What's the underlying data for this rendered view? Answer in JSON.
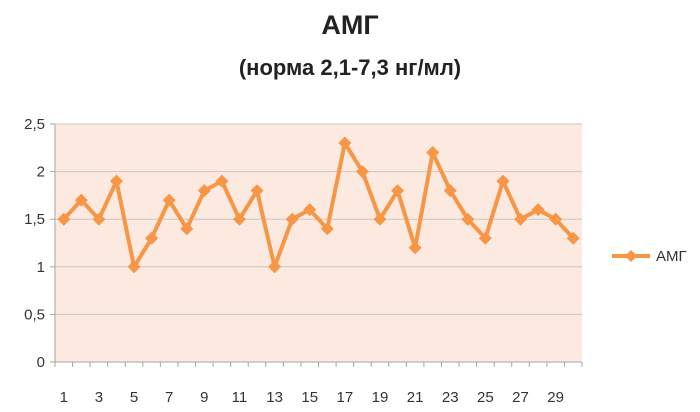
{
  "chart_data": {
    "type": "line",
    "title": "АМГ",
    "subtitle": "(норма 2,1-7,3 нг/мл)",
    "xlabel": "",
    "ylabel": "",
    "x": [
      1,
      2,
      3,
      4,
      5,
      6,
      7,
      8,
      9,
      10,
      11,
      12,
      13,
      14,
      15,
      16,
      17,
      18,
      19,
      20,
      21,
      22,
      23,
      24,
      25,
      26,
      27,
      28,
      29,
      30
    ],
    "x_tick_labels": [
      "1",
      "3",
      "5",
      "7",
      "9",
      "11",
      "13",
      "15",
      "17",
      "19",
      "21",
      "23",
      "25",
      "27",
      "29"
    ],
    "x_tick_values": [
      1,
      3,
      5,
      7,
      9,
      11,
      13,
      15,
      17,
      19,
      21,
      23,
      25,
      27,
      29
    ],
    "y_tick_labels": [
      "0",
      "0,5",
      "1",
      "1,5",
      "2",
      "2,5"
    ],
    "y_tick_values": [
      0,
      0.5,
      1,
      1.5,
      2,
      2.5
    ],
    "ylim": [
      0,
      2.5
    ],
    "xlim": [
      1,
      30
    ],
    "grid": true,
    "legend_position": "right",
    "series": [
      {
        "name": "АМГ",
        "color": "#F79646",
        "marker": "diamond",
        "values": [
          1.5,
          1.7,
          1.5,
          1.9,
          1.0,
          1.3,
          1.7,
          1.4,
          1.8,
          1.9,
          1.5,
          1.8,
          1.0,
          1.5,
          1.6,
          1.4,
          2.3,
          2.0,
          1.5,
          1.8,
          1.2,
          2.2,
          1.8,
          1.5,
          1.3,
          1.9,
          1.5,
          1.6,
          1.5,
          1.3
        ]
      }
    ],
    "colors": {
      "plot_background": "#FCE9E0",
      "gridline": "#C8C8C8",
      "axis": "#A6A6A6"
    }
  }
}
